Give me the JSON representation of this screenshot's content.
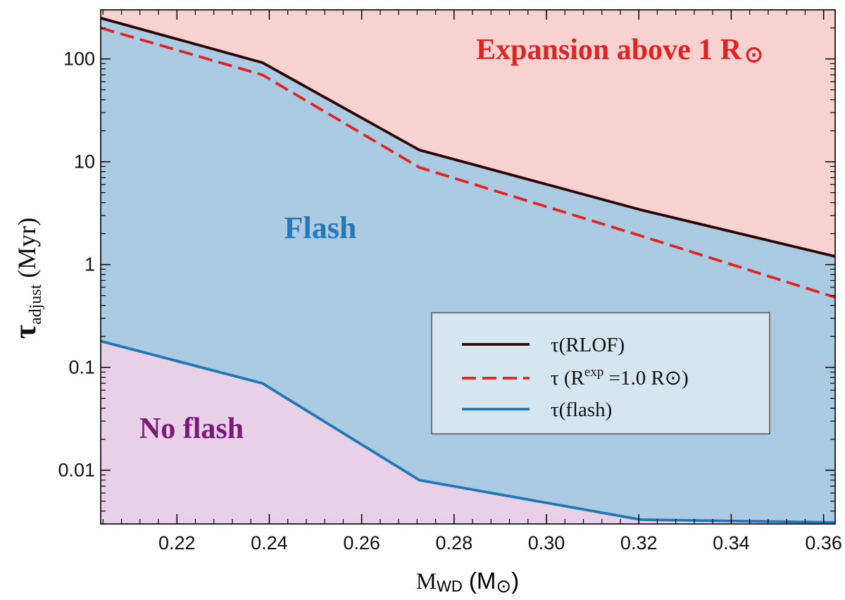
{
  "chart_data": {
    "type": "area",
    "x_axis": {
      "label_main": "M",
      "label_sub": "WD",
      "label_unit_open": " (M",
      "label_unit_symbol": "⊙",
      "label_unit_close": ")",
      "range": [
        0.2035,
        0.3625
      ],
      "ticks": [
        0.22,
        0.24,
        0.26,
        0.28,
        0.3,
        0.32,
        0.34,
        0.36
      ],
      "tick_labels": [
        "0.22",
        "0.24",
        "0.26",
        "0.28",
        "0.30",
        "0.32",
        "0.34",
        "0.36"
      ]
    },
    "y_axis": {
      "label_main": "τ",
      "label_sub": "adjust",
      "label_unit": " (Myr)",
      "scale": "log",
      "range": [
        0.003,
        300
      ],
      "ticks": [
        0.01,
        0.1,
        1,
        10,
        100
      ],
      "tick_labels": [
        "0.01",
        "0.1",
        "1",
        "10",
        "100"
      ]
    },
    "series": [
      {
        "name": "τ(RLOF)",
        "color": "#2a0606",
        "style": "solid",
        "points": [
          [
            0.2035,
            250
          ],
          [
            0.2385,
            92
          ],
          [
            0.2725,
            13
          ],
          [
            0.3205,
            3.4
          ],
          [
            0.3625,
            1.2
          ]
        ]
      },
      {
        "name": "τ (R^exp =1.0 R⊙)",
        "color": "#e02424",
        "style": "dashed",
        "points": [
          [
            0.2035,
            200
          ],
          [
            0.2385,
            70
          ],
          [
            0.2725,
            8.8
          ],
          [
            0.3205,
            1.9
          ],
          [
            0.3625,
            0.48
          ]
        ]
      },
      {
        "name": "τ(flash)",
        "color": "#1f77b4",
        "style": "solid",
        "points": [
          [
            0.2035,
            0.18
          ],
          [
            0.2385,
            0.07
          ],
          [
            0.2725,
            0.008
          ],
          [
            0.3205,
            0.0033
          ],
          [
            0.3625,
            0.0031
          ]
        ]
      }
    ],
    "regions": [
      {
        "name": "Expansion above 1 R⊙",
        "color": "#f8d1d1"
      },
      {
        "name": "Flash",
        "color": "#aacbe2"
      },
      {
        "name": "No flash",
        "color": "#e8d0e6"
      }
    ],
    "annotations": {
      "expansion": {
        "text": "Expansion above 1 R",
        "symbol": "⊙",
        "color": "#e02424"
      },
      "flash": {
        "text": "Flash",
        "color": "#2478b5"
      },
      "no_flash": {
        "text": "No flash",
        "color": "#7a1a7a"
      }
    },
    "legend": {
      "placement": "lower-right",
      "background": "#d6e6f1",
      "entries": [
        {
          "prefix": "τ(RLOF)",
          "sup": "",
          "suffix": ""
        },
        {
          "prefix": "τ (R",
          "sup": "exp",
          "suffix": " =1.0 R⊙)"
        },
        {
          "prefix": "τ(flash)",
          "sup": "",
          "suffix": ""
        }
      ]
    },
    "grid": false
  }
}
